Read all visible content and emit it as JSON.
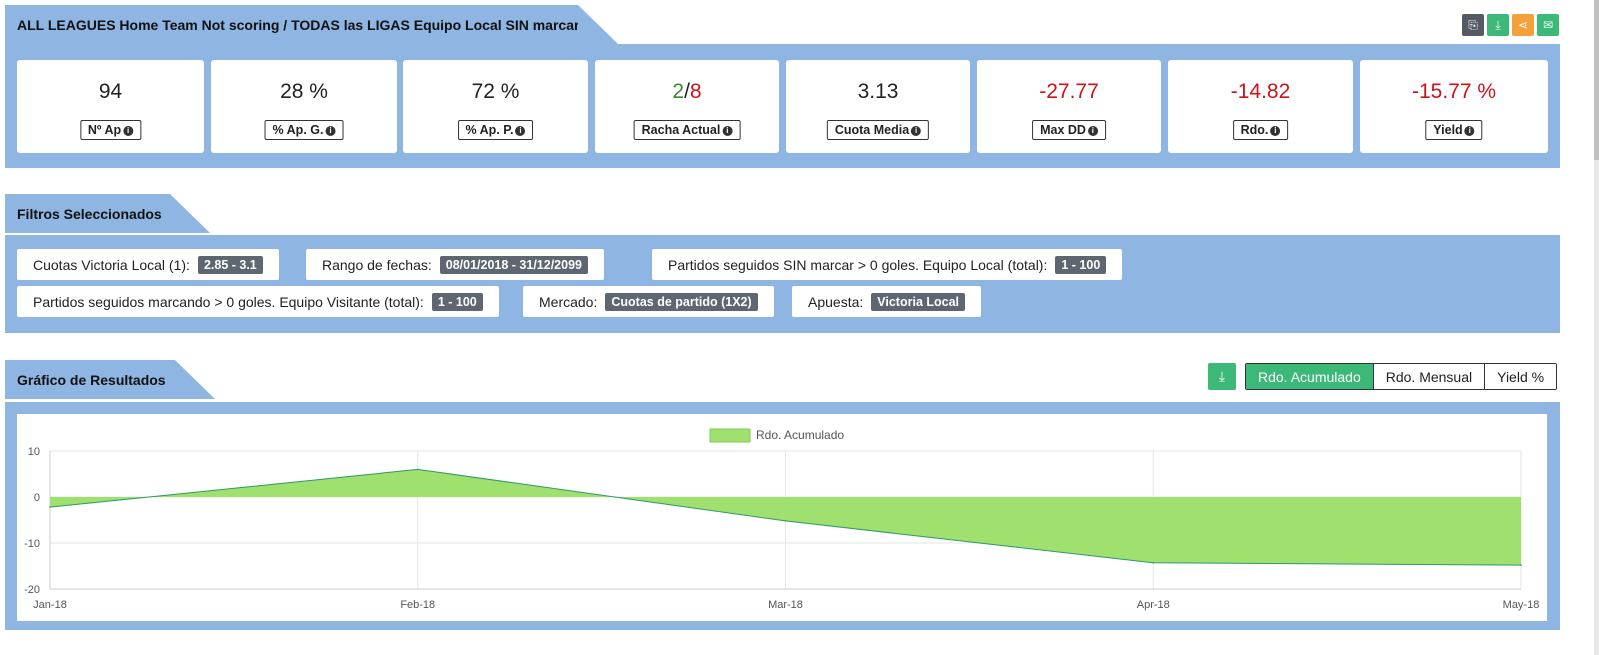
{
  "summary": {
    "title": "ALL LEAGUES Home Team Not scoring / TODAS las LIGAS Equipo Local SIN marcar",
    "icons": [
      "copy-icon",
      "download-icon",
      "share-icon",
      "email-icon"
    ],
    "icon_colors": [
      "#555b62",
      "#3cb878",
      "#f5a03a",
      "#3cb878"
    ],
    "stats": [
      {
        "value": "94",
        "label": "Nº Ap",
        "color": "default"
      },
      {
        "value": "28 %",
        "label": "% Ap. G.",
        "color": "default"
      },
      {
        "value": "72 %",
        "label": "% Ap. P.",
        "color": "default"
      },
      {
        "value_win": "2",
        "value_sep": "/",
        "value_loss": "8",
        "label": "Racha Actual",
        "color": "mixed"
      },
      {
        "value": "3.13",
        "label": "Cuota Media",
        "color": "default"
      },
      {
        "value": "-27.77",
        "label": "Max DD",
        "color": "red"
      },
      {
        "value": "-14.82",
        "label": "Rdo.",
        "color": "red"
      },
      {
        "value": "-15.77 %",
        "label": "Yield",
        "color": "red"
      }
    ]
  },
  "filters": {
    "title": "Filtros Seleccionados",
    "items": [
      {
        "label": "Cuotas Victoria Local (1):",
        "value": "2.85 - 3.1"
      },
      {
        "label": "Rango de fechas:",
        "value": "08/01/2018 - 31/12/2099"
      },
      {
        "label": "Partidos seguidos SIN marcar > 0 goles. Equipo Local (total):",
        "value": "1 - 100"
      },
      {
        "label": "Partidos seguidos marcando > 0 goles. Equipo Visitante (total):",
        "value": "1 - 100"
      },
      {
        "label": "Mercado:",
        "value": "Cuotas de partido (1X2)"
      },
      {
        "label": "Apuesta:",
        "value": "Victoria Local"
      }
    ]
  },
  "results": {
    "title": "Gráfico de Resultados",
    "tabs": [
      "Rdo. Acumulado",
      "Rdo. Mensual",
      "Yield %"
    ],
    "active_tab": "Rdo. Acumulado"
  },
  "chart_data": {
    "type": "area",
    "x": [
      "Jan-18",
      "Feb-18",
      "Mar-18",
      "Apr-18",
      "May-18"
    ],
    "series": [
      {
        "name": "Rdo. Acumulado",
        "values": [
          -2.2,
          6.0,
          -5.2,
          -14.3,
          -14.82
        ],
        "color": "#9fe06f",
        "line_color": "#2b9a66"
      }
    ],
    "yticks": [
      10,
      0,
      -10,
      -20
    ],
    "ylim": [
      -20,
      10
    ],
    "grid": true,
    "legend": "top-center"
  }
}
